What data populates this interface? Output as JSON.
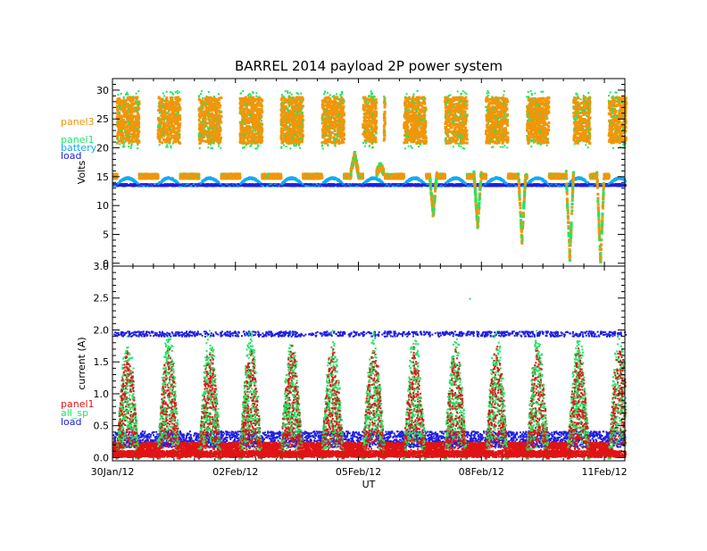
{
  "chart_data": {
    "type": "scatter",
    "title": "BARREL 2014 payload 2P power system",
    "x_axis": {
      "label": "UT",
      "range": [
        "2012-01-30",
        "2012-02-11T12:00"
      ],
      "ticks": [
        {
          "value": "2012-01-30",
          "label": "30Jan/12"
        },
        {
          "value": "2012-02-02",
          "label": "02Feb/12"
        },
        {
          "value": "2012-02-05",
          "label": "05Feb/12"
        },
        {
          "value": "2012-02-08",
          "label": "08Feb/12"
        },
        {
          "value": "2012-02-11",
          "label": "11Feb/12"
        }
      ]
    },
    "panels": [
      {
        "ylabel": "Volts",
        "ylim": [
          -0.5,
          32
        ],
        "yticks": [
          0,
          5,
          10,
          15,
          20,
          25,
          30
        ],
        "legend": [
          {
            "name": "panel3",
            "color": "#f0960a"
          },
          {
            "name": "panel1",
            "color": "#1ee664"
          },
          {
            "name": "battery",
            "color": "#14aaf0"
          },
          {
            "name": "load",
            "color": "#2020e0"
          }
        ],
        "series": [
          {
            "name": "panel3",
            "color": "#f0960a",
            "typical_daytime_range": [
              21,
              29
            ],
            "nighttime_value": 15.3
          },
          {
            "name": "panel1",
            "color": "#1ee664",
            "typical_daytime_range": [
              20,
              30
            ]
          },
          {
            "name": "battery",
            "color": "#14aaf0",
            "typical_range": [
              13.5,
              15
            ]
          },
          {
            "name": "load",
            "color": "#2020e0",
            "typical_value": 13.5
          }
        ],
        "dips": [
          {
            "x": "2012-02-04T21:00",
            "y": 18.5
          },
          {
            "x": "2012-02-05T12:00",
            "y": 16.5
          },
          {
            "x": "2012-02-06T19:00",
            "y": 8
          },
          {
            "x": "2012-02-07T21:00",
            "y": 6
          },
          {
            "x": "2012-02-08T23:00",
            "y": 3.5
          },
          {
            "x": "2012-02-10T03:00",
            "y": 0.5
          },
          {
            "x": "2012-02-10T21:00",
            "y": 0
          }
        ]
      },
      {
        "ylabel": "current (A)",
        "ylim": [
          -0.05,
          3.0
        ],
        "yticks": [
          0.0,
          0.5,
          1.0,
          1.5,
          2.0,
          2.5,
          3.0
        ],
        "ytick_labels": [
          "0.0",
          "0.5",
          "1.0",
          "1.5",
          "2.0",
          "2.5",
          "3.0"
        ],
        "legend": [
          {
            "name": "panel1",
            "color": "#e01414"
          },
          {
            "name": "all_sp",
            "color": "#1ee664"
          },
          {
            "name": "load",
            "color": "#2020e0"
          }
        ],
        "series": [
          {
            "name": "panel1",
            "color": "#e01414",
            "typical_range": [
              0.0,
              1.8
            ]
          },
          {
            "name": "all_sp",
            "color": "#1ee664",
            "typical_range": [
              0.0,
              2.0
            ],
            "max": 2.5
          },
          {
            "name": "load",
            "color": "#2020e0",
            "typical_levels": [
              0.25,
              1.95
            ]
          }
        ]
      }
    ]
  }
}
